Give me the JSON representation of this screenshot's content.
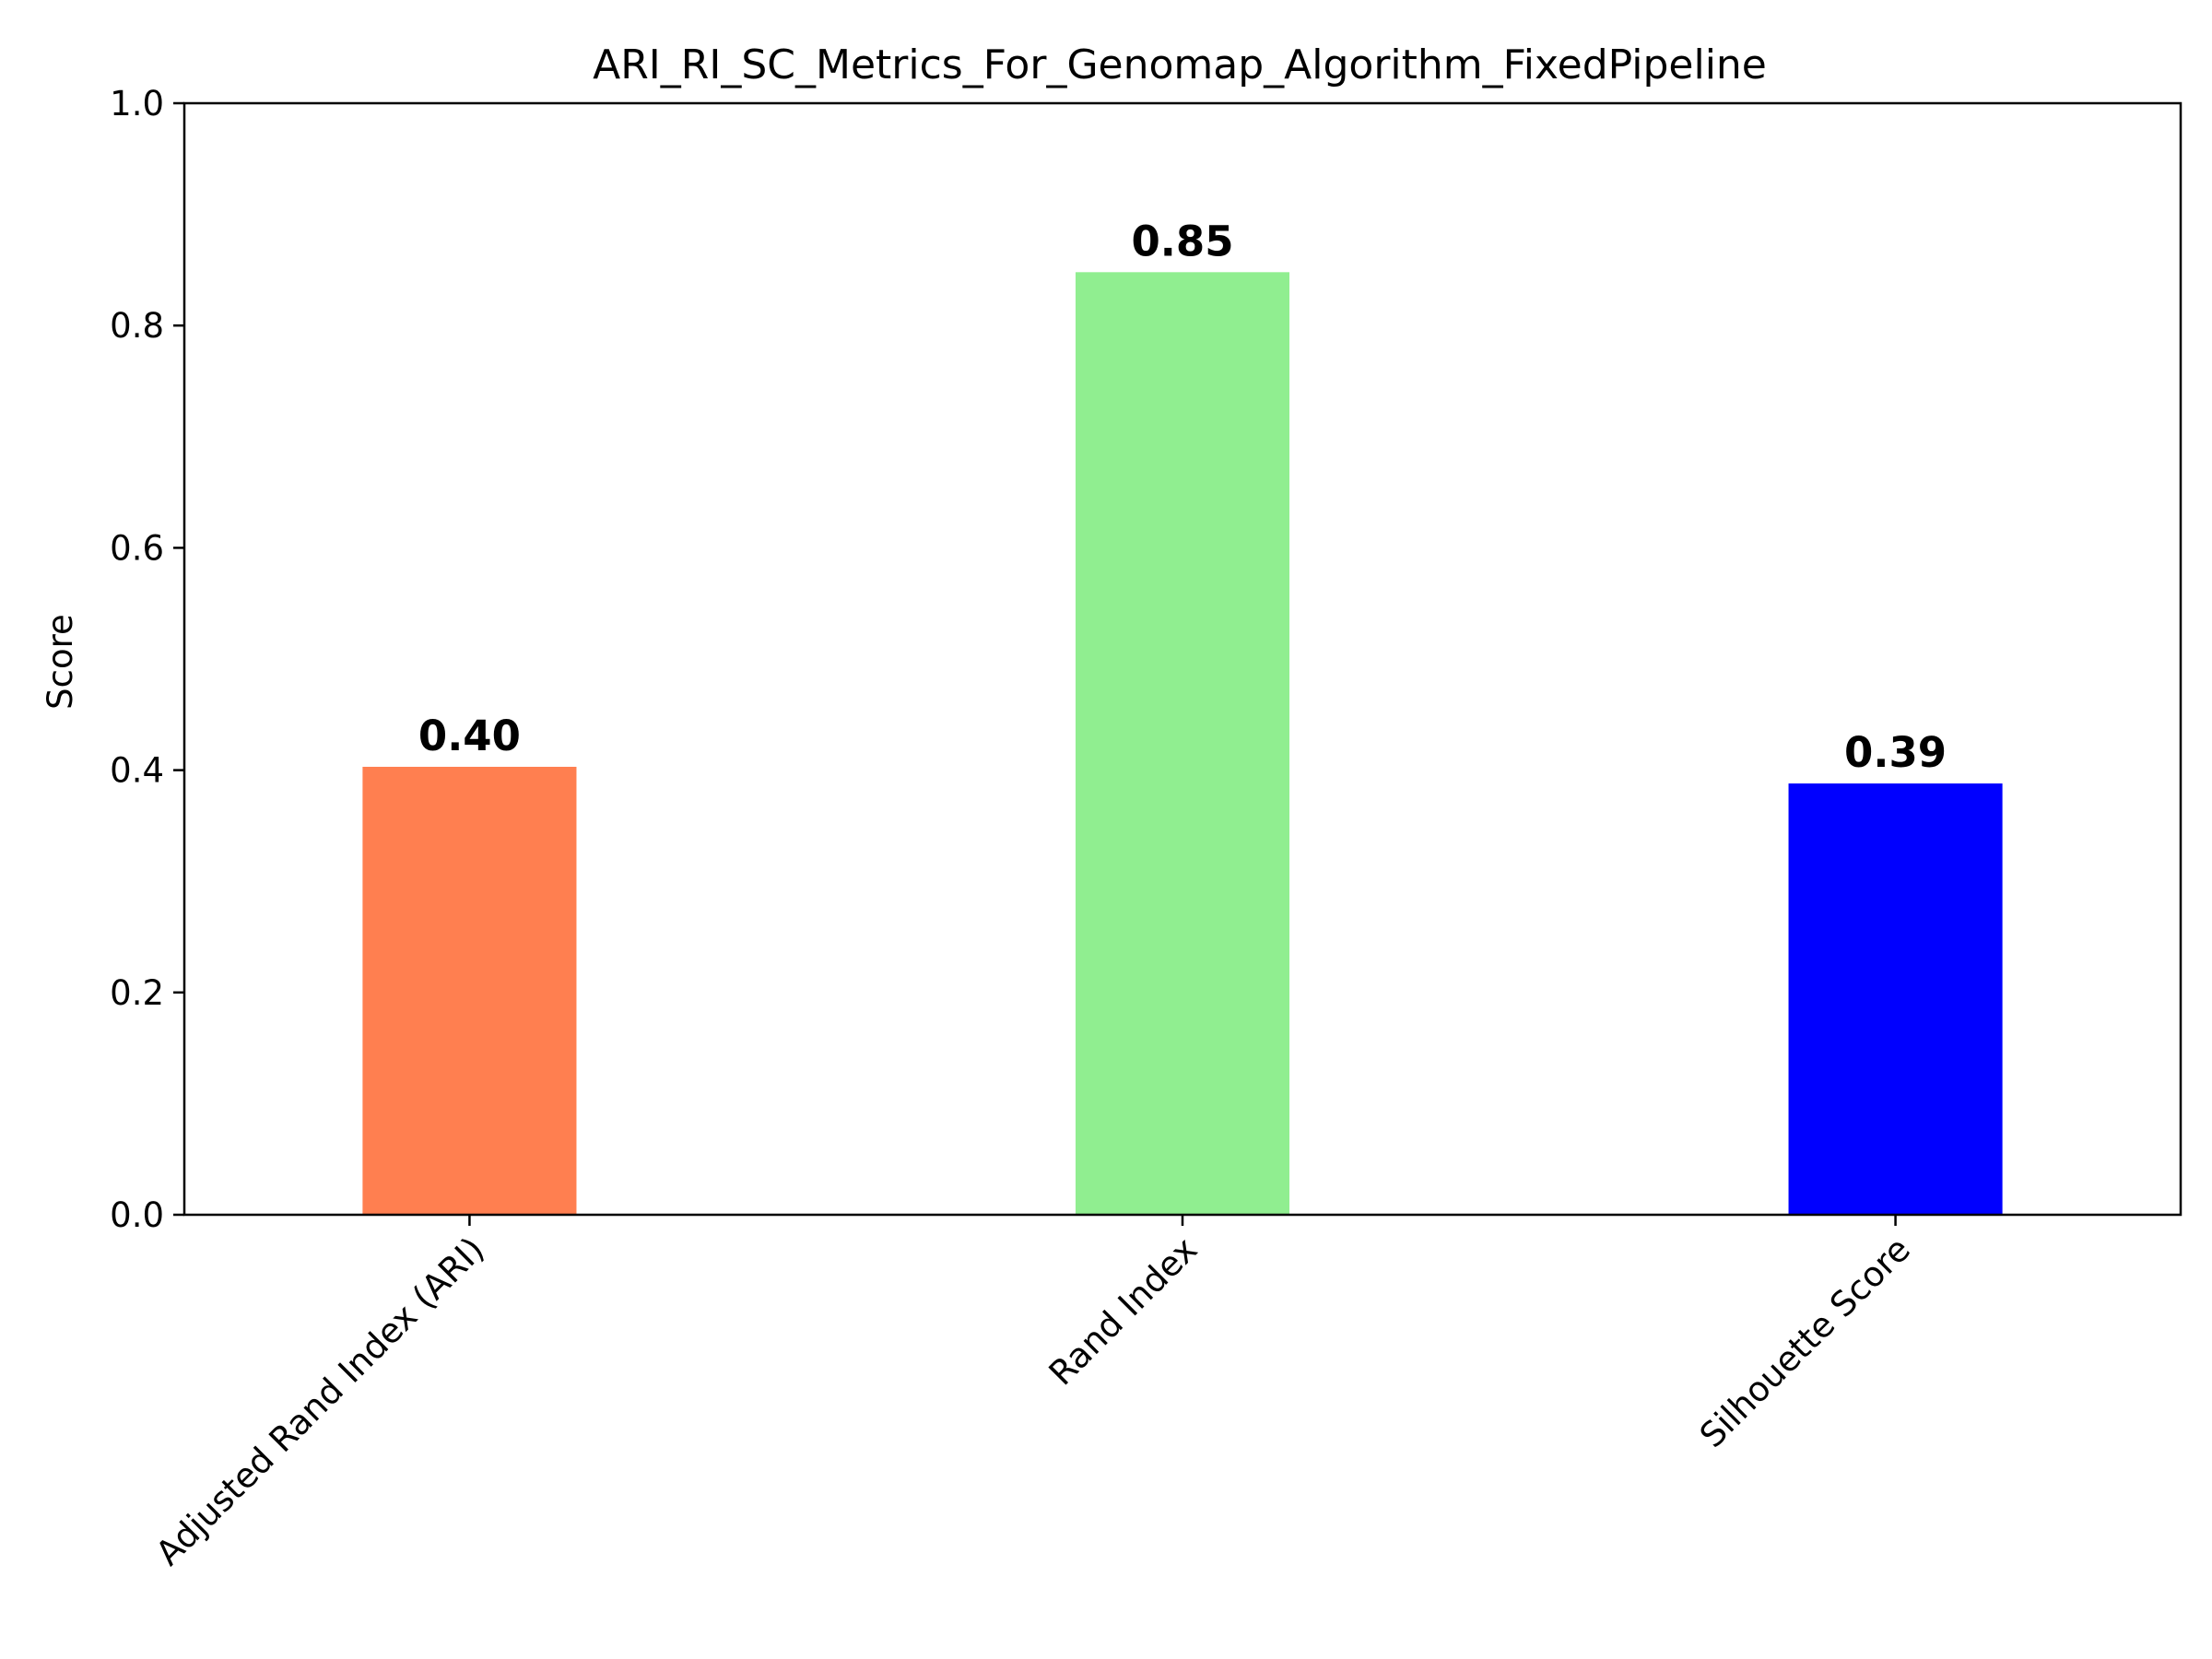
{
  "chart_data": {
    "type": "bar",
    "title": "ARI_RI_SC_Metrics_For_Genomap_Algorithm_FixedPipeline",
    "xlabel": "",
    "ylabel": "Score",
    "ylim": [
      0,
      1.0
    ],
    "yticks": [
      "0.0",
      "0.2",
      "0.4",
      "0.6",
      "0.8",
      "1.0"
    ],
    "categories": [
      "Adjusted Rand Index (ARI)",
      "Rand Index",
      "Silhouette Score"
    ],
    "values": [
      0.403,
      0.848,
      0.388
    ],
    "value_labels": [
      "0.40",
      "0.85",
      "0.39"
    ],
    "colors": [
      "#ff7f50",
      "#90ee90",
      "#0000ff"
    ],
    "grid": false,
    "legend": "none"
  }
}
